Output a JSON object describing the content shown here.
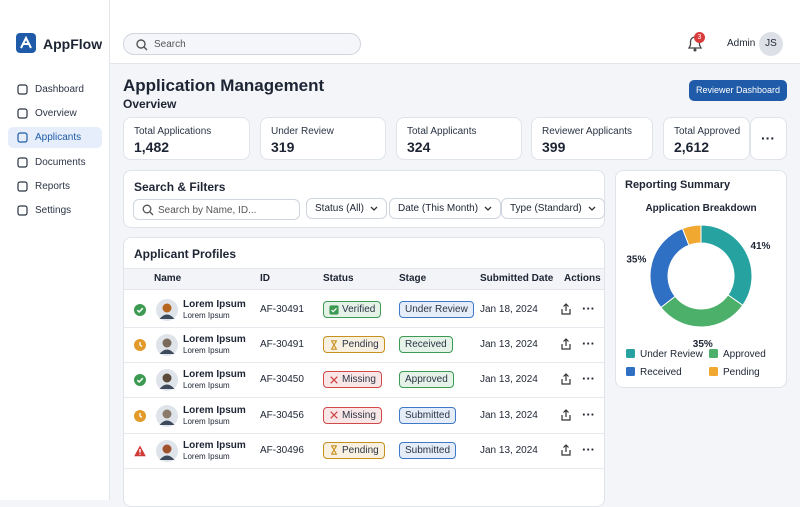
{
  "sidebar": {
    "brand": "AppFlow",
    "nav": [
      "Dashboard",
      "Overview",
      "Applicants",
      "Documents",
      "Reports",
      "Settings"
    ],
    "active": 2
  },
  "header": {
    "search_placeholder": "Search",
    "notifications": 3,
    "user": "Admin",
    "initials": "JS"
  },
  "page": {
    "title": "Application Management",
    "subtitle": "Overview",
    "action": "Reviewer Dashboard"
  },
  "stats": [
    {
      "label": "Total Applications",
      "value": "1,482"
    },
    {
      "label": "Under Review",
      "value": "319"
    },
    {
      "label": "Total Applicants",
      "value": "324"
    },
    {
      "label": "Reviewer Applicants",
      "value": "399"
    },
    {
      "label": "Total Approved",
      "value": "2,612"
    }
  ],
  "filters": {
    "title": "Search & Filters",
    "placeholder": "Search by Name, ID...",
    "dropdowns": [
      "Status (All)",
      "Date (This Month)",
      "Type (Standard)"
    ]
  },
  "table": {
    "title": "Applicant Profiles",
    "columns": [
      "Name",
      "ID",
      "Status",
      "Stage",
      "Submitted Date",
      "Actions"
    ],
    "rows": [
      {
        "icon": "check",
        "name": "Lorem Ipsum",
        "sub": "Lorem Ipsum",
        "id": "AF-30491",
        "status": "Verified",
        "status_icon": "check",
        "status_color": "#3c9a52",
        "stage": "Under Review",
        "stage_color": "#3f78c8",
        "date": "Jan 18, 2024"
      },
      {
        "icon": "clock",
        "name": "Lorem Ipsum",
        "sub": "Lorem Ipsum",
        "id": "AF-30491",
        "status": "Pending",
        "status_icon": "hourglass",
        "status_color": "#c8901e",
        "stage": "Received",
        "stage_color": "#3c9a52",
        "date": "Jan 13, 2024"
      },
      {
        "icon": "check",
        "name": "Lorem Ipsum",
        "sub": "Lorem Ipsum",
        "id": "AF-30450",
        "status": "Missing",
        "status_icon": "cross",
        "status_color": "#d04848",
        "stage": "Approved",
        "stage_color": "#3c9a52",
        "date": "Jan 13, 2024"
      },
      {
        "icon": "clock",
        "name": "Lorem Ipsum",
        "sub": "Lorem Ipsum",
        "id": "AF-30456",
        "status": "Missing",
        "status_icon": "cross",
        "status_color": "#d04848",
        "stage": "Submitted",
        "stage_color": "#3f78c8",
        "date": "Jan 13, 2024"
      },
      {
        "icon": "alert",
        "name": "Lorem Ipsum",
        "sub": "Lorem Ipsum",
        "id": "AF-30496",
        "status": "Pending",
        "status_icon": "hourglass",
        "status_color": "#c8901e",
        "stage": "Submitted",
        "stage_color": "#3f78c8",
        "date": "Jan 13, 2024"
      }
    ]
  },
  "report": {
    "title": "Reporting Summary"
  },
  "chart_data": {
    "type": "donut",
    "title": "Application Breakdown",
    "categories": [
      "Under Review",
      "Approved",
      "Received",
      "Pending"
    ],
    "values": [
      41,
      35,
      35,
      7
    ],
    "value_labels": [
      "41%",
      "35%",
      "35%",
      null
    ],
    "colors": [
      "#26a3a0",
      "#4caf6a",
      "#2f6fc4",
      "#f0a830"
    ]
  }
}
